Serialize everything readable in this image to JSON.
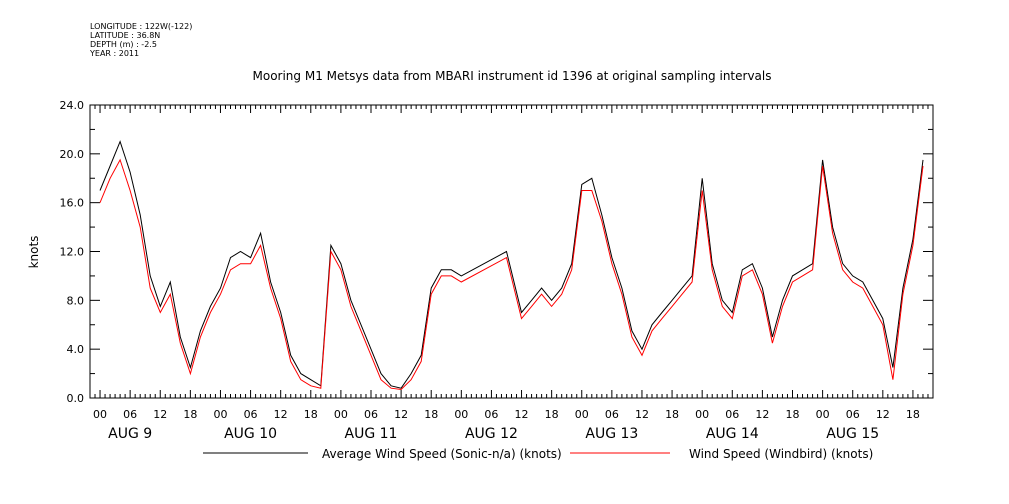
{
  "meta": {
    "longitude": "LONGITUDE : 122W(-122)",
    "latitude": "LATITUDE : 36.8N",
    "depth": "DEPTH (m) : -2.5",
    "year": "YEAR : 2011"
  },
  "chart_data": {
    "type": "line",
    "title": "Mooring M1 Metsys data from MBARI instrument id 1396 at original sampling intervals",
    "ylabel": "knots",
    "xlabel": "",
    "ylim": [
      0,
      24
    ],
    "yticks": [
      "0.0",
      "4.0",
      "8.0",
      "12.0",
      "16.0",
      "20.0",
      "24.0"
    ],
    "xrange_hours": [
      -2,
      166
    ],
    "hour_tick_labels": [
      "00",
      "06",
      "12",
      "18"
    ],
    "day_labels": [
      "AUG 9",
      "AUG 10",
      "AUG 11",
      "AUG 12",
      "AUG 13",
      "AUG 14",
      "AUG 15"
    ],
    "grid": false,
    "legend_position": "bottom",
    "gap_hours": [
      72,
      81
    ],
    "series": [
      {
        "name": "Average Wind Speed (Sonic-n/a) (knots)",
        "color": "#000000",
        "x": [
          0,
          2,
          4,
          6,
          8,
          10,
          12,
          14,
          16,
          18,
          20,
          22,
          24,
          26,
          28,
          30,
          32,
          34,
          36,
          38,
          40,
          42,
          44,
          46,
          48,
          50,
          52,
          54,
          56,
          58,
          60,
          62,
          64,
          66,
          68,
          70,
          72,
          81,
          84,
          86,
          88,
          90,
          92,
          94,
          96,
          98,
          100,
          102,
          104,
          106,
          108,
          110,
          112,
          114,
          116,
          118,
          120,
          122,
          124,
          126,
          128,
          130,
          132,
          134,
          136,
          138,
          140,
          142,
          144,
          146,
          148,
          150,
          152,
          154,
          156,
          158,
          160,
          162,
          164
        ],
        "y": [
          17,
          19,
          21,
          18.5,
          15,
          10,
          7.5,
          9.5,
          5,
          2.5,
          5.5,
          7.5,
          9,
          11.5,
          12,
          11.5,
          13.5,
          9.5,
          7,
          3.5,
          2,
          1.5,
          1,
          12.5,
          11,
          8,
          6,
          4,
          2,
          1,
          0.8,
          2,
          3.5,
          9,
          10.5,
          10.5,
          10,
          12,
          7,
          8,
          9,
          8,
          9,
          11,
          17.5,
          18,
          15,
          11.5,
          9,
          5.5,
          4,
          6,
          7,
          8,
          9,
          10,
          18,
          11,
          8,
          7,
          10.5,
          11,
          9,
          5,
          8,
          10,
          10.5,
          11,
          19.5,
          14,
          11,
          10,
          9.5,
          8,
          6.5,
          2.5,
          9,
          13,
          19.5
        ]
      },
      {
        "name": "Wind Speed (Windbird) (knots)",
        "color": "#ff0000",
        "x": [
          0,
          2,
          4,
          6,
          8,
          10,
          12,
          14,
          16,
          18,
          20,
          22,
          24,
          26,
          28,
          30,
          32,
          34,
          36,
          38,
          40,
          42,
          44,
          46,
          48,
          50,
          52,
          54,
          56,
          58,
          60,
          62,
          64,
          66,
          68,
          70,
          72,
          81,
          84,
          86,
          88,
          90,
          92,
          94,
          96,
          98,
          100,
          102,
          104,
          106,
          108,
          110,
          112,
          114,
          116,
          118,
          120,
          122,
          124,
          126,
          128,
          130,
          132,
          134,
          136,
          138,
          140,
          142,
          144,
          146,
          148,
          150,
          152,
          154,
          156,
          158,
          160,
          162,
          164
        ],
        "y": [
          16,
          18,
          19.5,
          17,
          14,
          9,
          7,
          8.5,
          4.5,
          2,
          5,
          7,
          8.5,
          10.5,
          11,
          11,
          12.5,
          9,
          6.5,
          3,
          1.5,
          1,
          0.8,
          12,
          10.5,
          7.5,
          5.5,
          3.5,
          1.5,
          0.8,
          0.7,
          1.5,
          3,
          8.5,
          10,
          10,
          9.5,
          11.5,
          6.5,
          7.5,
          8.5,
          7.5,
          8.5,
          10.5,
          17,
          17,
          14.5,
          11,
          8.5,
          5,
          3.5,
          5.5,
          6.5,
          7.5,
          8.5,
          9.5,
          17,
          10.5,
          7.5,
          6.5,
          10,
          10.5,
          8.5,
          4.5,
          7.5,
          9.5,
          10,
          10.5,
          19,
          13.5,
          10.5,
          9.5,
          9,
          7.5,
          6,
          1.5,
          8.5,
          12.5,
          19
        ]
      }
    ]
  }
}
